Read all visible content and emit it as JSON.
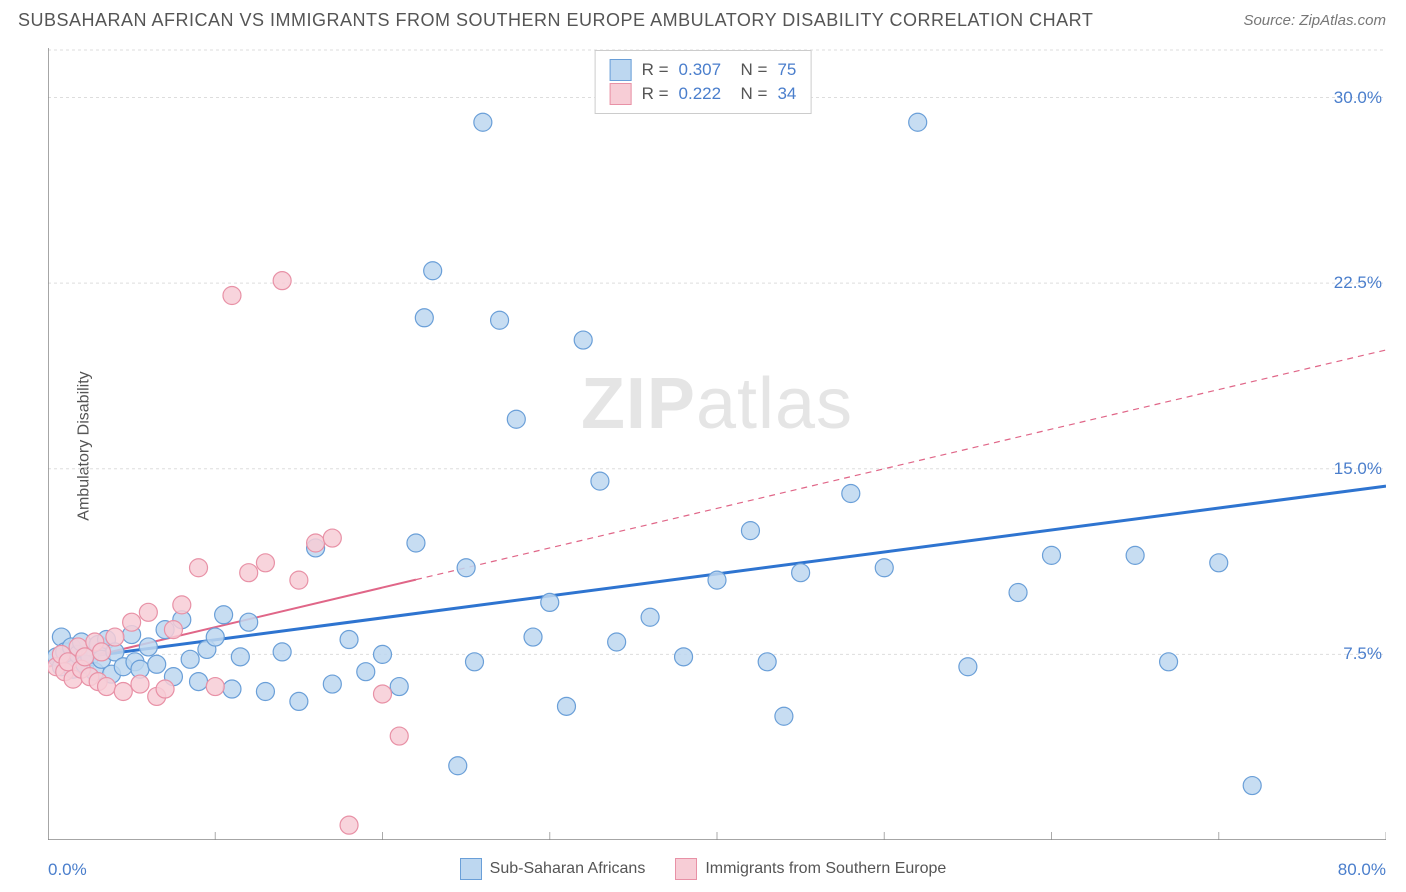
{
  "header": {
    "title": "SUBSAHARAN AFRICAN VS IMMIGRANTS FROM SOUTHERN EUROPE AMBULATORY DISABILITY CORRELATION CHART",
    "source": "Source: ZipAtlas.com"
  },
  "chart": {
    "type": "scatter",
    "y_axis_label": "Ambulatory Disability",
    "watermark": "ZIPatlas",
    "background_color": "#ffffff",
    "grid_color": "#dddddd",
    "axis_color": "#888888",
    "tick_color": "#aaaaaa",
    "x_range": [
      0,
      80
    ],
    "y_range": [
      0,
      32
    ],
    "x_ticks": [
      0,
      10,
      20,
      30,
      40,
      50,
      60,
      70,
      80
    ],
    "x_tick_labels": {
      "min": "0.0%",
      "max": "80.0%"
    },
    "y_ticks": [
      7.5,
      15.0,
      22.5,
      30.0
    ],
    "y_tick_labels": [
      "7.5%",
      "15.0%",
      "22.5%",
      "30.0%"
    ],
    "axis_label_color": "#4a7ecc",
    "marker_radius": 9,
    "marker_stroke_width": 1.2,
    "series": [
      {
        "name": "Sub-Saharan Africans",
        "fill": "#bdd7f0",
        "stroke": "#6a9fd8",
        "legend_fill": "#bdd7f0",
        "legend_stroke": "#6a9fd8",
        "r_value": "0.307",
        "n_value": "75",
        "trend": {
          "color": "#2e74d0",
          "width": 3,
          "x1": 0,
          "y1": 7.2,
          "x2": 80,
          "y2": 14.3,
          "dash_from_x": 80
        },
        "points": [
          [
            0.5,
            7.4
          ],
          [
            0.8,
            7.0
          ],
          [
            0.8,
            8.2
          ],
          [
            1.0,
            7.6
          ],
          [
            1.2,
            7.2
          ],
          [
            1.4,
            7.8
          ],
          [
            1.5,
            6.9
          ],
          [
            1.8,
            7.5
          ],
          [
            2.0,
            8.0
          ],
          [
            2.2,
            7.1
          ],
          [
            2.5,
            7.4
          ],
          [
            2.8,
            6.8
          ],
          [
            3.0,
            7.9
          ],
          [
            3.2,
            7.3
          ],
          [
            3.5,
            8.1
          ],
          [
            3.8,
            6.7
          ],
          [
            4.0,
            7.6
          ],
          [
            4.5,
            7.0
          ],
          [
            5.0,
            8.3
          ],
          [
            5.2,
            7.2
          ],
          [
            5.5,
            6.9
          ],
          [
            6.0,
            7.8
          ],
          [
            6.5,
            7.1
          ],
          [
            7.0,
            8.5
          ],
          [
            7.5,
            6.6
          ],
          [
            8.0,
            8.9
          ],
          [
            8.5,
            7.3
          ],
          [
            9.0,
            6.4
          ],
          [
            9.5,
            7.7
          ],
          [
            10.0,
            8.2
          ],
          [
            10.5,
            9.1
          ],
          [
            11.0,
            6.1
          ],
          [
            11.5,
            7.4
          ],
          [
            12.0,
            8.8
          ],
          [
            13.0,
            6.0
          ],
          [
            14.0,
            7.6
          ],
          [
            15.0,
            5.6
          ],
          [
            16.0,
            11.8
          ],
          [
            17.0,
            6.3
          ],
          [
            18.0,
            8.1
          ],
          [
            19.0,
            6.8
          ],
          [
            20.0,
            7.5
          ],
          [
            21.0,
            6.2
          ],
          [
            22.0,
            12.0
          ],
          [
            22.5,
            21.1
          ],
          [
            23.0,
            23.0
          ],
          [
            24.5,
            3.0
          ],
          [
            25.0,
            11.0
          ],
          [
            25.5,
            7.2
          ],
          [
            26.0,
            29.0
          ],
          [
            27.0,
            21.0
          ],
          [
            28.0,
            17.0
          ],
          [
            29.0,
            8.2
          ],
          [
            30.0,
            9.6
          ],
          [
            31.0,
            5.4
          ],
          [
            32.0,
            20.2
          ],
          [
            33.0,
            14.5
          ],
          [
            34.0,
            8.0
          ],
          [
            36.0,
            9.0
          ],
          [
            38.0,
            7.4
          ],
          [
            40.0,
            10.5
          ],
          [
            42.0,
            12.5
          ],
          [
            43.0,
            7.2
          ],
          [
            44.0,
            5.0
          ],
          [
            45.0,
            10.8
          ],
          [
            48.0,
            14.0
          ],
          [
            50.0,
            11.0
          ],
          [
            52.0,
            29.0
          ],
          [
            55.0,
            7.0
          ],
          [
            58.0,
            10.0
          ],
          [
            60.0,
            11.5
          ],
          [
            65.0,
            11.5
          ],
          [
            67.0,
            7.2
          ],
          [
            70.0,
            11.2
          ],
          [
            72.0,
            2.2
          ]
        ]
      },
      {
        "name": "Immigrants from Southern Europe",
        "fill": "#f7cdd6",
        "stroke": "#e891a6",
        "legend_fill": "#f7cdd6",
        "legend_stroke": "#e891a6",
        "r_value": "0.222",
        "n_value": "34",
        "trend": {
          "color": "#e06688",
          "width": 2,
          "x1": 0,
          "y1": 7.0,
          "x2": 80,
          "y2": 19.8,
          "solid_to_x": 22,
          "dash_from_x": 22
        },
        "points": [
          [
            0.5,
            7.0
          ],
          [
            0.8,
            7.5
          ],
          [
            1.0,
            6.8
          ],
          [
            1.2,
            7.2
          ],
          [
            1.5,
            6.5
          ],
          [
            1.8,
            7.8
          ],
          [
            2.0,
            6.9
          ],
          [
            2.2,
            7.4
          ],
          [
            2.5,
            6.6
          ],
          [
            2.8,
            8.0
          ],
          [
            3.0,
            6.4
          ],
          [
            3.2,
            7.6
          ],
          [
            3.5,
            6.2
          ],
          [
            4.0,
            8.2
          ],
          [
            4.5,
            6.0
          ],
          [
            5.0,
            8.8
          ],
          [
            5.5,
            6.3
          ],
          [
            6.0,
            9.2
          ],
          [
            6.5,
            5.8
          ],
          [
            7.0,
            6.1
          ],
          [
            7.5,
            8.5
          ],
          [
            8.0,
            9.5
          ],
          [
            9.0,
            11.0
          ],
          [
            10.0,
            6.2
          ],
          [
            11.0,
            22.0
          ],
          [
            12.0,
            10.8
          ],
          [
            13.0,
            11.2
          ],
          [
            14.0,
            22.6
          ],
          [
            15.0,
            10.5
          ],
          [
            16.0,
            12.0
          ],
          [
            17.0,
            12.2
          ],
          [
            18.0,
            0.6
          ],
          [
            20.0,
            5.9
          ],
          [
            21.0,
            4.2
          ]
        ]
      }
    ],
    "bottom_legend": [
      {
        "label": "Sub-Saharan Africans",
        "fill": "#bdd7f0",
        "stroke": "#6a9fd8"
      },
      {
        "label": "Immigrants from Southern Europe",
        "fill": "#f7cdd6",
        "stroke": "#e891a6"
      }
    ]
  }
}
